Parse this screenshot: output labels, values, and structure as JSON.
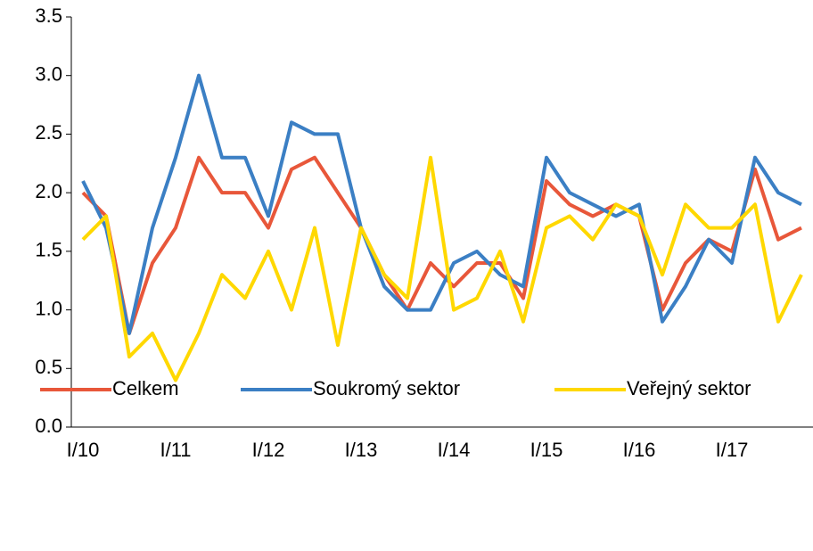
{
  "chart_data": {
    "type": "line",
    "categories": [
      "I/10",
      null,
      null,
      null,
      "I/11",
      null,
      null,
      null,
      "I/12",
      null,
      null,
      null,
      "I/13",
      null,
      null,
      null,
      "I/14",
      null,
      null,
      null,
      "I/15",
      null,
      null,
      null,
      "I/16",
      null,
      null,
      null,
      "I/17",
      null,
      null,
      null
    ],
    "series": [
      {
        "name": "Celkem",
        "color": "#e8573a",
        "values": [
          2.0,
          1.8,
          0.8,
          1.4,
          1.7,
          2.3,
          2.0,
          2.0,
          1.7,
          2.2,
          2.3,
          2.0,
          1.7,
          1.3,
          1.0,
          1.4,
          1.2,
          1.4,
          1.4,
          1.1,
          2.1,
          1.9,
          1.8,
          1.9,
          1.8,
          1.0,
          1.4,
          1.6,
          1.5,
          2.2,
          1.6,
          1.7
        ]
      },
      {
        "name": "Soukromý sektor",
        "color": "#3b7fc4",
        "values": [
          2.1,
          1.7,
          0.8,
          1.7,
          2.3,
          3.0,
          2.3,
          2.3,
          1.8,
          2.6,
          2.5,
          2.5,
          1.7,
          1.2,
          1.0,
          1.0,
          1.4,
          1.5,
          1.3,
          1.2,
          2.3,
          2.0,
          1.9,
          1.8,
          1.9,
          0.9,
          1.2,
          1.6,
          1.4,
          2.3,
          2.0,
          1.9
        ]
      },
      {
        "name": "Veřejný sektor",
        "color": "#ffd800",
        "values": [
          1.6,
          1.8,
          0.6,
          0.8,
          0.4,
          0.8,
          1.3,
          1.1,
          1.5,
          1.0,
          1.7,
          0.7,
          1.7,
          1.3,
          1.1,
          2.3,
          1.0,
          1.1,
          1.5,
          0.9,
          1.7,
          1.8,
          1.6,
          1.9,
          1.8,
          1.3,
          1.9,
          1.7,
          1.7,
          1.9,
          0.9,
          1.3
        ]
      }
    ],
    "ylim": [
      0,
      3.5
    ],
    "yticks": [
      {
        "value": 0,
        "label": "0.0"
      },
      0.5,
      {
        "value": 1,
        "label": "1.0"
      },
      1.5,
      {
        "value": 2,
        "label": "2.0"
      },
      2.5,
      {
        "value": 3,
        "label": "3.0"
      },
      3.5
    ],
    "grid": false,
    "legend": "bottom"
  }
}
